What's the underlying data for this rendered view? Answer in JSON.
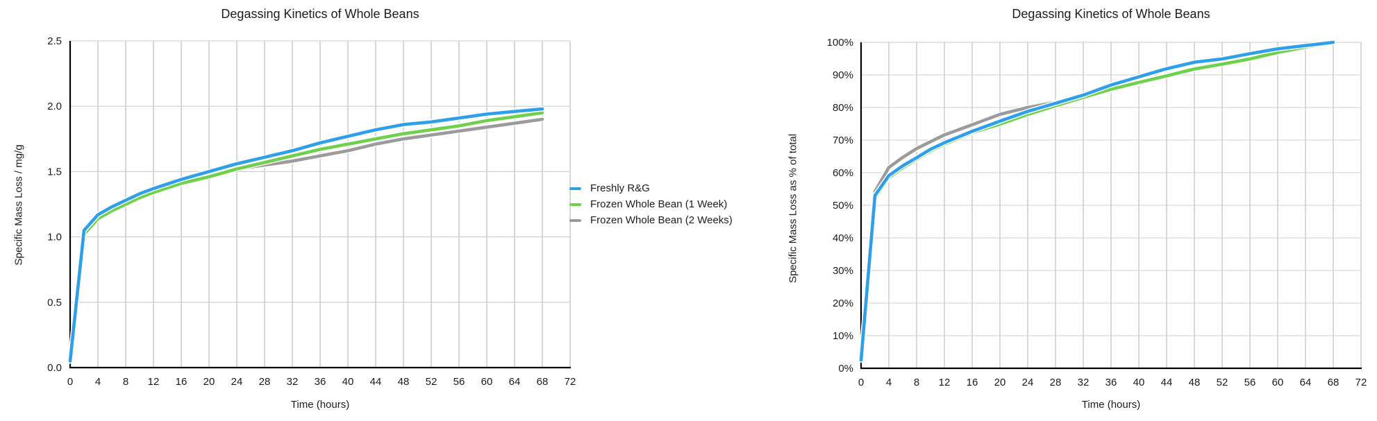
{
  "page": {
    "background": "#ffffff"
  },
  "legend": {
    "items": [
      {
        "label": "Freshly R&G",
        "color": "#2E9FE8"
      },
      {
        "label": "Frozen Whole Bean (1 Week)",
        "color": "#6FD04C"
      },
      {
        "label": "Frozen Whole Bean (2 Weeks)",
        "color": "#9B9B9B"
      }
    ]
  },
  "chart_data": [
    {
      "type": "line",
      "title": "Degassing Kinetics of Whole Beans",
      "xlabel": "Time (hours)",
      "ylabel": "Specific Mass Loss / mg/g",
      "xlim": [
        0,
        72
      ],
      "ylim": [
        0,
        2.5
      ],
      "x_ticks": [
        0,
        4,
        8,
        12,
        16,
        20,
        24,
        28,
        32,
        36,
        40,
        44,
        48,
        52,
        56,
        60,
        64,
        68,
        72
      ],
      "y_ticks": [
        0,
        0.5,
        1.0,
        1.5,
        2.0,
        2.5
      ],
      "y_tick_labels": [
        "0.0",
        "0.5",
        "1.0",
        "1.5",
        "2.0",
        "2.5"
      ],
      "grid": true,
      "legend_position": "right-of-chart",
      "x": [
        0,
        2,
        4,
        6,
        8,
        10,
        12,
        16,
        20,
        24,
        28,
        32,
        36,
        40,
        44,
        48,
        52,
        56,
        60,
        64,
        68
      ],
      "series": [
        {
          "name": "Freshly R&G",
          "color": "#2E9FE8",
          "values": [
            0.05,
            1.05,
            1.17,
            1.23,
            1.28,
            1.33,
            1.37,
            1.44,
            1.5,
            1.56,
            1.61,
            1.66,
            1.72,
            1.77,
            1.82,
            1.86,
            1.88,
            1.91,
            1.94,
            1.96,
            1.98
          ]
        },
        {
          "name": "Frozen Whole Bean (1 Week)",
          "color": "#6FD04C",
          "values": [
            0.05,
            1.02,
            1.14,
            1.2,
            1.25,
            1.3,
            1.34,
            1.41,
            1.46,
            1.52,
            1.57,
            1.62,
            1.67,
            1.71,
            1.75,
            1.79,
            1.82,
            1.85,
            1.89,
            1.92,
            1.95
          ]
        },
        {
          "name": "Frozen Whole Bean (2 Weeks)",
          "color": "#9B9B9B",
          "values": [
            0.05,
            1.03,
            1.17,
            1.23,
            1.28,
            1.32,
            1.36,
            1.42,
            1.48,
            1.52,
            1.55,
            1.58,
            1.62,
            1.66,
            1.71,
            1.75,
            1.78,
            1.81,
            1.84,
            1.87,
            1.9
          ]
        }
      ]
    },
    {
      "type": "line",
      "title": "Degassing Kinetics of Whole Beans",
      "xlabel": "Time (hours)",
      "ylabel": "Specific Mass Loss as % of total",
      "xlim": [
        0,
        72
      ],
      "ylim": [
        0,
        100
      ],
      "x_ticks": [
        0,
        4,
        8,
        12,
        16,
        20,
        24,
        28,
        32,
        36,
        40,
        44,
        48,
        52,
        56,
        60,
        64,
        68,
        72
      ],
      "y_ticks": [
        0,
        10,
        20,
        30,
        40,
        50,
        60,
        70,
        80,
        90,
        100
      ],
      "y_tick_labels": [
        "0%",
        "10%",
        "20%",
        "30%",
        "40%",
        "50%",
        "60%",
        "70%",
        "80%",
        "90%",
        "100%"
      ],
      "grid": true,
      "legend_position": "left-of-chart",
      "x": [
        0,
        2,
        4,
        6,
        8,
        10,
        12,
        16,
        20,
        24,
        28,
        32,
        36,
        40,
        44,
        48,
        52,
        56,
        60,
        64,
        68
      ],
      "series": [
        {
          "name": "Freshly R&G",
          "color": "#2E9FE8",
          "values": [
            2.5,
            53.0,
            59.1,
            62.1,
            64.6,
            67.2,
            69.2,
            72.7,
            75.8,
            78.8,
            81.3,
            83.8,
            86.9,
            89.4,
            91.9,
            93.9,
            94.9,
            96.5,
            98.0,
            99.0,
            100
          ]
        },
        {
          "name": "Frozen Whole Bean (1 Week)",
          "color": "#6FD04C",
          "values": [
            2.6,
            52.3,
            58.5,
            61.5,
            64.1,
            66.7,
            68.7,
            72.3,
            74.9,
            77.9,
            80.5,
            83.1,
            85.6,
            87.7,
            89.7,
            91.8,
            93.3,
            94.9,
            96.9,
            98.5,
            100
          ]
        },
        {
          "name": "Frozen Whole Bean (2 Weeks)",
          "color": "#9B9B9B",
          "values": [
            2.6,
            54.2,
            61.6,
            64.7,
            67.4,
            69.5,
            71.6,
            74.7,
            77.9,
            80.0,
            81.6,
            83.2,
            85.3,
            87.4,
            90.0,
            92.1,
            93.7,
            95.3,
            96.8,
            98.4,
            100
          ]
        }
      ]
    }
  ]
}
